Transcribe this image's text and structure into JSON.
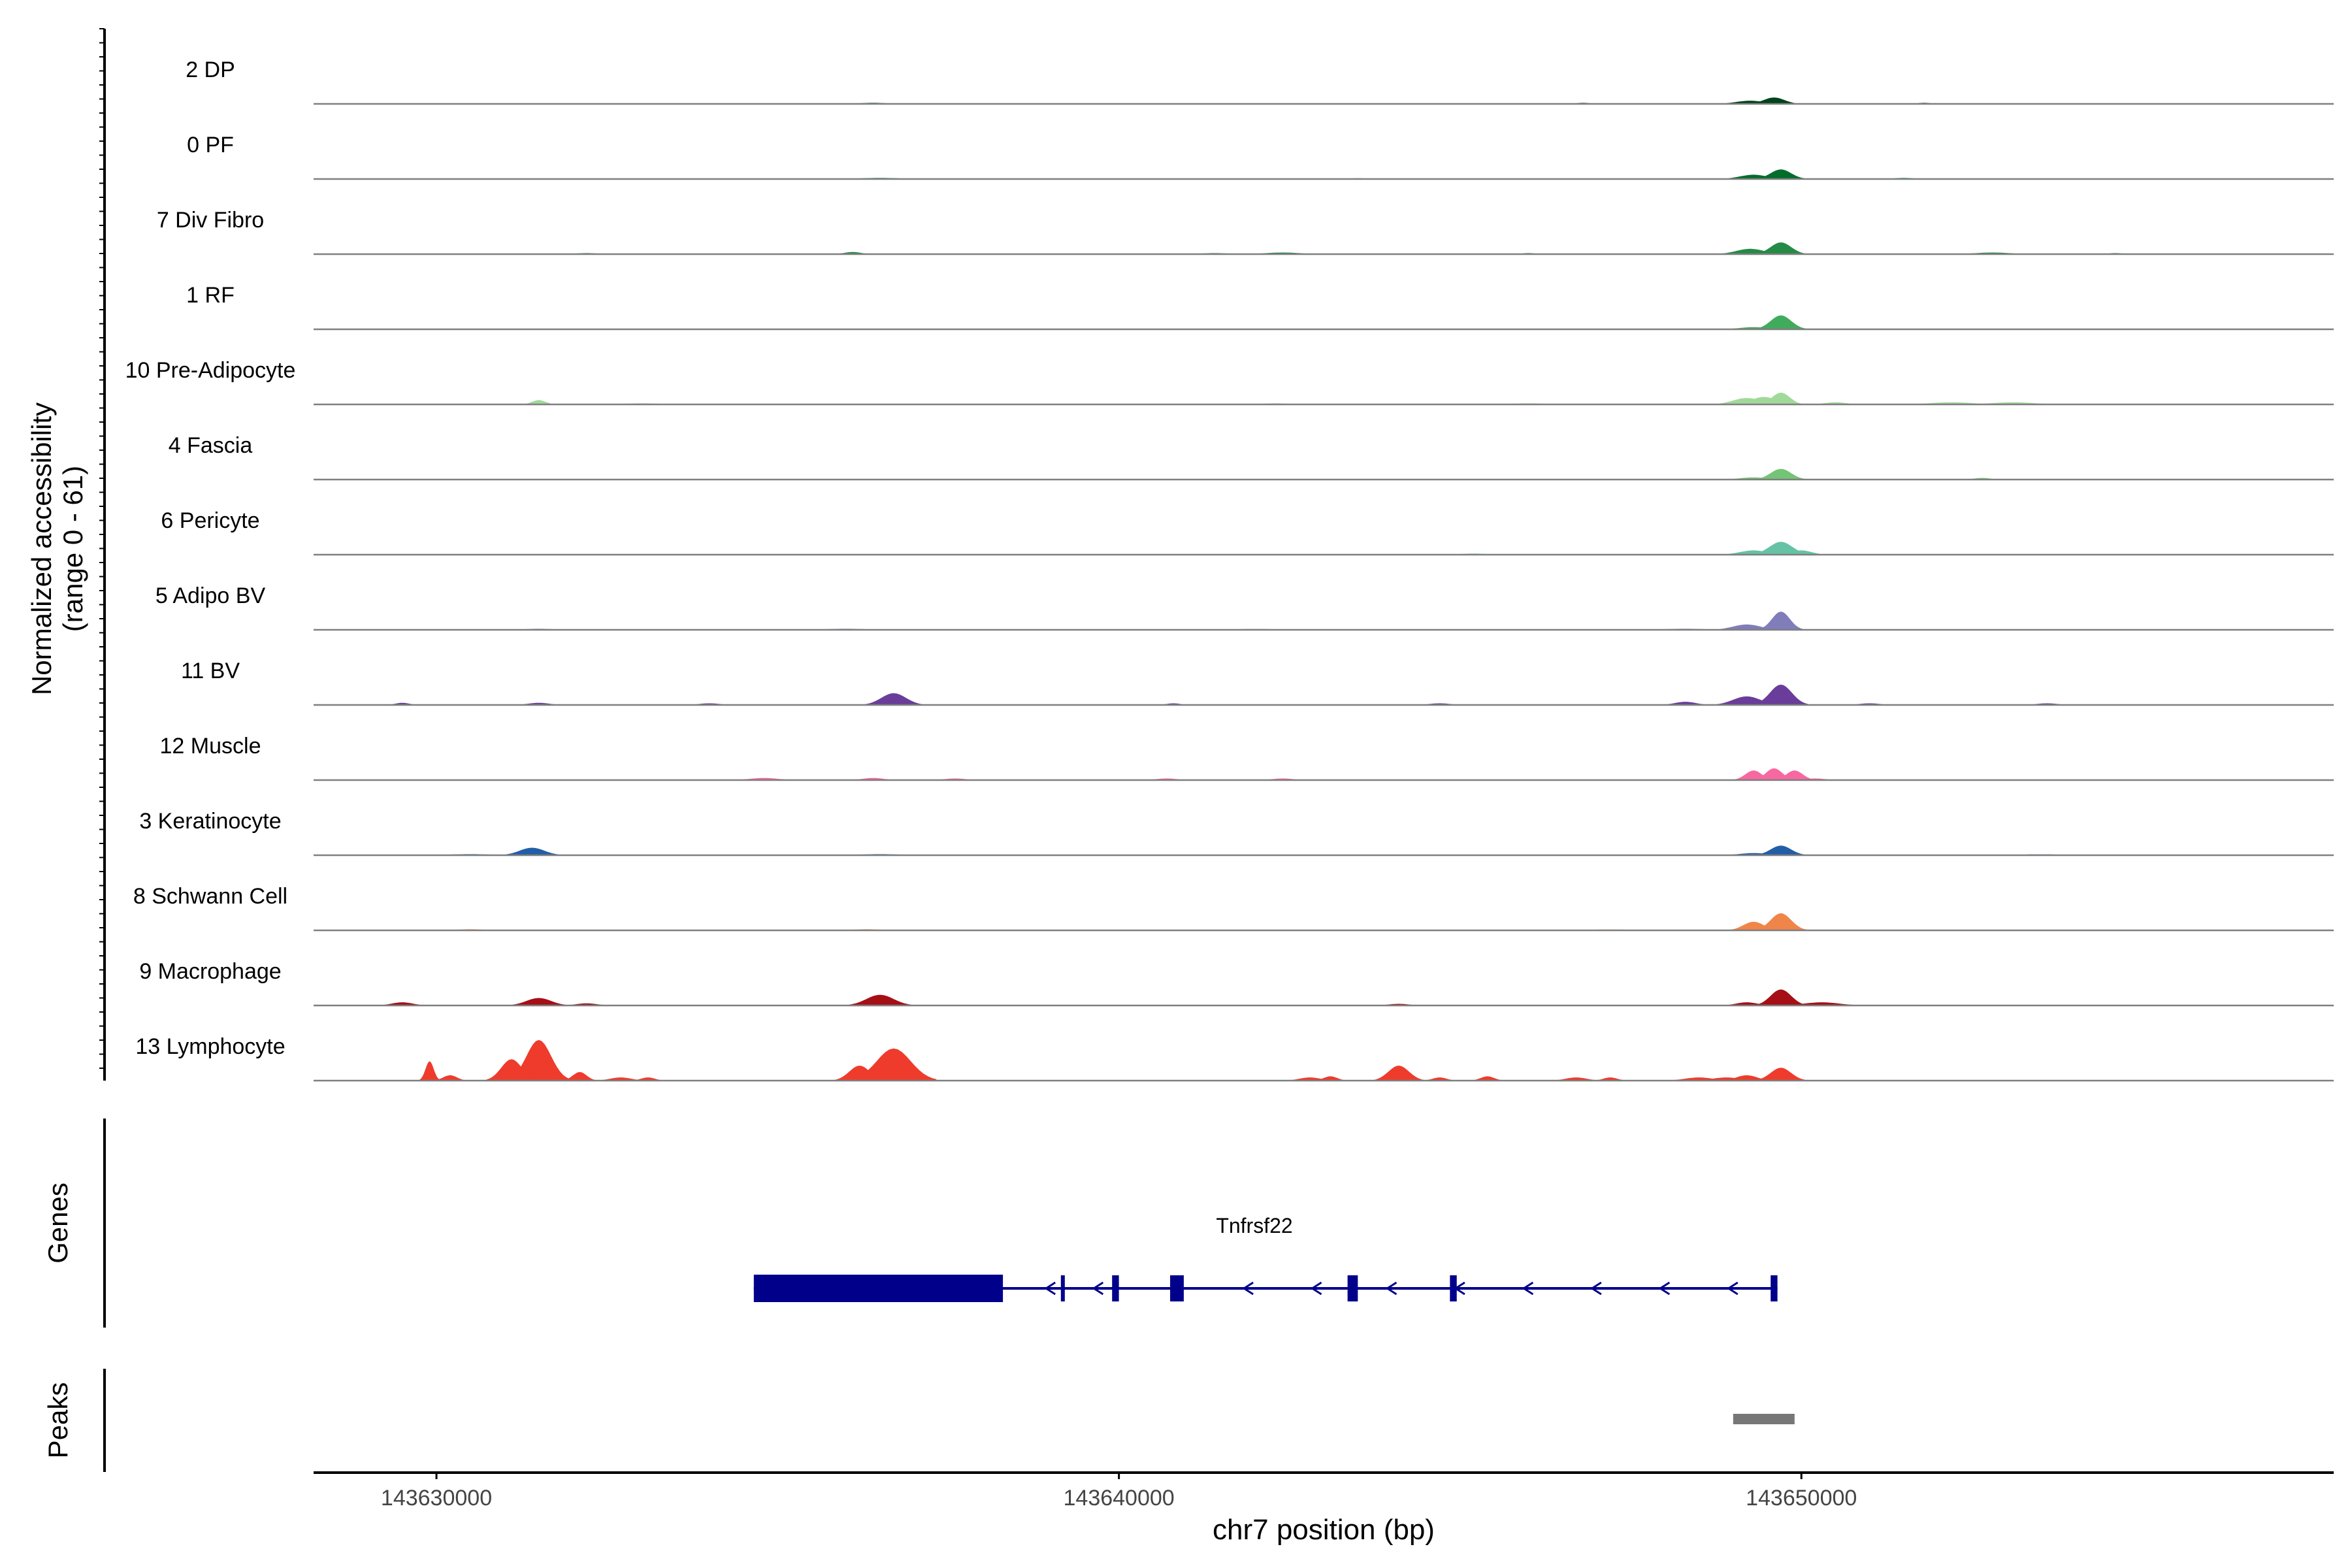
{
  "chart_data": {
    "type": "area",
    "chromosome": "chr7",
    "xlabel": "chr7 position (bp)",
    "ylabel_line1": "Normalized accessibility",
    "ylabel_line2": "(range 0 - 61)",
    "ylim": [
      0,
      61
    ],
    "xlim": [
      143628200,
      143657800
    ],
    "x_ticks": [
      143630000,
      143640000,
      143650000
    ],
    "x_tick_labels": [
      "143630000",
      "143640000",
      "143650000"
    ],
    "panels": {
      "genes": "Genes",
      "peaks": "Peaks"
    },
    "tracks": [
      {
        "name": "2 DP",
        "color": "#00441b",
        "peaks": [
          [
            143649600,
            6,
            150
          ],
          [
            143649250,
            3,
            200
          ],
          [
            143646800,
            1,
            100
          ],
          [
            143636400,
            1,
            200
          ],
          [
            143651800,
            1,
            100
          ]
        ]
      },
      {
        "name": "0 PF",
        "color": "#006d2c",
        "peaks": [
          [
            143649700,
            9,
            150
          ],
          [
            143649300,
            4,
            200
          ],
          [
            143636500,
            1,
            300
          ],
          [
            143651500,
            1,
            150
          ],
          [
            143643500,
            0.7,
            150
          ]
        ]
      },
      {
        "name": "7 Div Fibro",
        "color": "#238b45",
        "peaks": [
          [
            143649700,
            11,
            150
          ],
          [
            143649250,
            5,
            200
          ],
          [
            143636100,
            2,
            120
          ],
          [
            143632200,
            1,
            150
          ],
          [
            143641400,
            1,
            200
          ],
          [
            143642400,
            1.5,
            250
          ],
          [
            143646000,
            1,
            100
          ],
          [
            143652800,
            1.5,
            250
          ],
          [
            143654600,
            1,
            100
          ]
        ]
      },
      {
        "name": "1 RF",
        "color": "#41ab5d",
        "peaks": [
          [
            143649700,
            13,
            150
          ],
          [
            143649300,
            2,
            200
          ],
          [
            143632800,
            0.6,
            200
          ],
          [
            143636500,
            0.6,
            200
          ]
        ]
      },
      {
        "name": "10 Pre-Adipocyte",
        "color": "#a1d99b",
        "peaks": [
          [
            143649700,
            11,
            130
          ],
          [
            143649200,
            6,
            200
          ],
          [
            143649450,
            7,
            180
          ],
          [
            143631500,
            4,
            100
          ],
          [
            143633000,
            1,
            300
          ],
          [
            143650500,
            2,
            150
          ],
          [
            143652200,
            2,
            300
          ],
          [
            143653100,
            2,
            300
          ],
          [
            143646000,
            1,
            300
          ],
          [
            143642300,
            1,
            200
          ]
        ]
      },
      {
        "name": "4 Fascia",
        "color": "#74c476",
        "peaks": [
          [
            143649700,
            10,
            150
          ],
          [
            143649300,
            2,
            200
          ],
          [
            143652650,
            1.5,
            120
          ]
        ]
      },
      {
        "name": "6 Pericyte",
        "color": "#66c2a4",
        "peaks": [
          [
            143649700,
            12,
            170
          ],
          [
            143649300,
            4,
            200
          ],
          [
            143650000,
            4,
            150
          ],
          [
            143645200,
            1,
            200
          ],
          [
            143647000,
            0.6,
            300
          ]
        ]
      },
      {
        "name": "5 Adipo BV",
        "color": "#807dba",
        "peaks": [
          [
            143649700,
            17,
            130
          ],
          [
            143649200,
            5,
            200
          ],
          [
            143631500,
            1,
            200
          ],
          [
            143636000,
            1,
            300
          ],
          [
            143638500,
            0.6,
            300
          ],
          [
            143642000,
            0.8,
            300
          ],
          [
            143648300,
            1,
            300
          ]
        ]
      },
      {
        "name": "11 BV",
        "color": "#6a3d9a",
        "peaks": [
          [
            143649700,
            19,
            160
          ],
          [
            143649200,
            8,
            200
          ],
          [
            143636700,
            11,
            180
          ],
          [
            143648300,
            3,
            150
          ],
          [
            143629500,
            2,
            100
          ],
          [
            143631500,
            2,
            150
          ],
          [
            143634000,
            1.5,
            150
          ],
          [
            143640800,
            1.5,
            100
          ],
          [
            143644700,
            1.5,
            150
          ],
          [
            143651000,
            1.5,
            150
          ],
          [
            143653600,
            1.5,
            150
          ]
        ]
      },
      {
        "name": "12 Muscle",
        "color": "#f768a1",
        "peaks": [
          [
            143649600,
            11,
            120
          ],
          [
            143649300,
            9,
            120
          ],
          [
            143649900,
            9,
            120
          ],
          [
            143634800,
            2,
            200
          ],
          [
            143636400,
            2,
            150
          ],
          [
            143637600,
            1.5,
            150
          ],
          [
            143640700,
            1.5,
            150
          ],
          [
            143642400,
            1.5,
            150
          ],
          [
            143650200,
            1.5,
            150
          ]
        ]
      },
      {
        "name": "3 Keratinocyte",
        "color": "#225ea8",
        "peaks": [
          [
            143649700,
            9,
            150
          ],
          [
            143631400,
            7,
            180
          ],
          [
            143649300,
            2,
            200
          ],
          [
            143636500,
            1,
            300
          ],
          [
            143630500,
            1,
            300
          ],
          [
            143653500,
            0.8,
            300
          ]
        ]
      },
      {
        "name": "8 Schwann Cell",
        "color": "#f0854a",
        "peaks": [
          [
            143649700,
            16,
            150
          ],
          [
            143649300,
            8,
            150
          ],
          [
            143630500,
            1,
            200
          ],
          [
            143636300,
            1,
            200
          ],
          [
            143647200,
            0.8,
            300
          ]
        ]
      },
      {
        "name": "9 Macrophage",
        "color": "#a50f15",
        "peaks": [
          [
            143649700,
            15,
            150
          ],
          [
            143631500,
            7,
            180
          ],
          [
            143636500,
            10,
            200
          ],
          [
            143629500,
            3,
            150
          ],
          [
            143632200,
            2,
            150
          ],
          [
            143649200,
            3,
            150
          ],
          [
            143650300,
            3,
            250
          ],
          [
            143644100,
            1.5,
            150
          ]
        ]
      },
      {
        "name": "13 Lymphocyte",
        "color": "#ef3b2c",
        "peaks": [
          [
            143631500,
            38,
            180
          ],
          [
            143631100,
            20,
            150
          ],
          [
            143636700,
            30,
            250
          ],
          [
            143636200,
            14,
            150
          ],
          [
            143629900,
            18,
            60
          ],
          [
            143644100,
            14,
            150
          ],
          [
            143649700,
            12,
            150
          ],
          [
            143632100,
            8,
            100
          ],
          [
            143630200,
            5,
            100
          ],
          [
            143632700,
            3,
            150
          ],
          [
            143633100,
            3,
            100
          ],
          [
            143642800,
            3,
            150
          ],
          [
            143643100,
            4,
            100
          ],
          [
            143644700,
            3,
            100
          ],
          [
            143645400,
            4,
            100
          ],
          [
            143646700,
            3,
            150
          ],
          [
            143647200,
            3,
            100
          ],
          [
            143648500,
            3,
            200
          ],
          [
            143648900,
            3,
            200
          ],
          [
            143649200,
            5,
            150
          ]
        ]
      }
    ],
    "gene": {
      "name": "Tnfrsf22",
      "strand": "-",
      "start": 143634650,
      "end": 143649650,
      "exons": [
        [
          143634650,
          143638300
        ],
        [
          143639150,
          143639190
        ],
        [
          143639900,
          143640000
        ],
        [
          143640750,
          143640950
        ],
        [
          143643350,
          143643500
        ],
        [
          143644850,
          143644950
        ],
        [
          143649550,
          143649650
        ]
      ],
      "arrows": [
        143639000,
        143639700,
        143641900,
        143642900,
        143644000,
        143645000,
        143646000,
        143647000,
        143648000,
        143649000
      ]
    },
    "peak_regions": [
      [
        143649000,
        143649900
      ]
    ]
  }
}
